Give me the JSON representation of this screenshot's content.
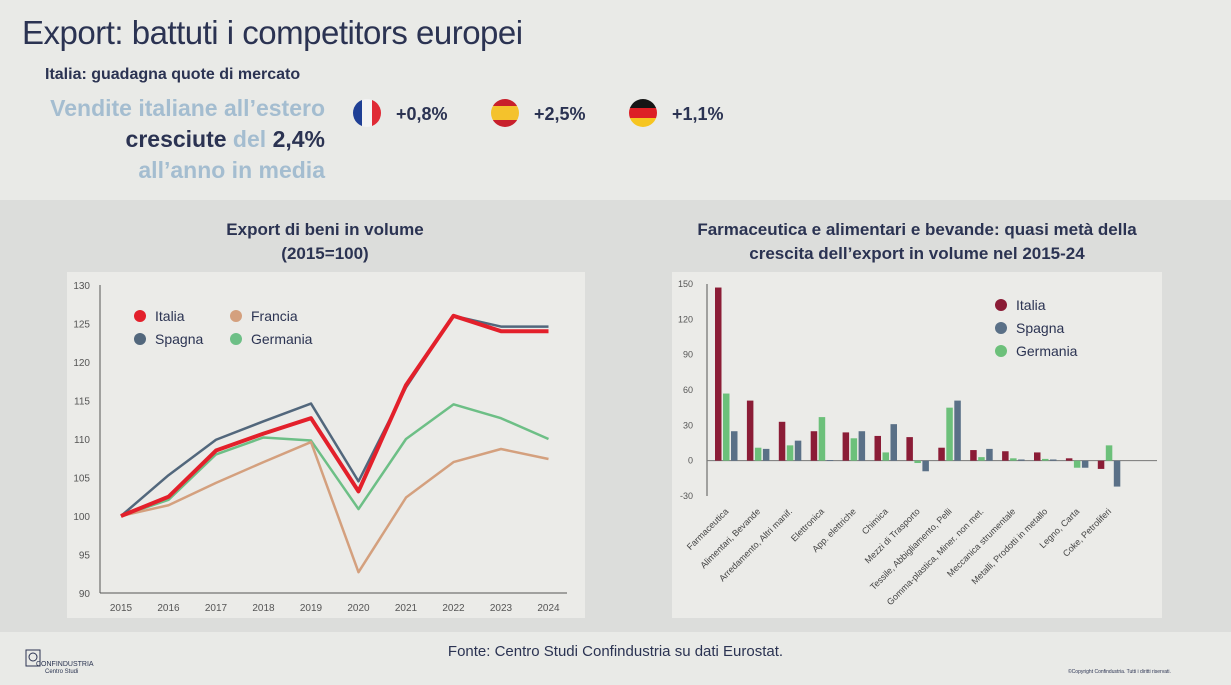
{
  "title": "Export: battuti i competitors europei",
  "subtitle": "Italia: guadagna quote di mercato",
  "headline": {
    "p1": "Vendite italiane all’estero ",
    "p2": "cresciute",
    "p3": " del ",
    "p4": "2,4%",
    "p5": " all’anno in media"
  },
  "flags": [
    {
      "country": "Francia",
      "icon": "france-flag-icon",
      "value": "+0,8%"
    },
    {
      "country": "Spagna",
      "icon": "spain-flag-icon",
      "value": "+2,5%"
    },
    {
      "country": "Germania",
      "icon": "germany-flag-icon",
      "value": "+1,1%"
    }
  ],
  "footer": {
    "source": "Fonte: Centro Studi Confindustria su dati Eurostat.",
    "logo_line1": "CONFINDUSTRIA",
    "logo_line2": "Centro Studi",
    "copyright": "©Copyright Confindustria. Tutti i diritti riservati."
  },
  "chart_data": [
    {
      "type": "line",
      "title": "Export di beni in volume",
      "subtitle": "(2015=100)",
      "xlabel": "",
      "ylabel": "",
      "x": [
        "2015",
        "2016",
        "2017",
        "2018",
        "2019",
        "2020",
        "2021",
        "2022",
        "2023",
        "2024"
      ],
      "ylim": [
        90,
        130
      ],
      "yticks": [
        90,
        95,
        100,
        105,
        110,
        115,
        120,
        125,
        130
      ],
      "legend": "top-left",
      "series": [
        {
          "name": "Germania",
          "color": "#6dbf86",
          "values": [
            100,
            102.1,
            108,
            110.2,
            109.8,
            100.9,
            110,
            114.5,
            112.7,
            110
          ]
        },
        {
          "name": "Francia",
          "color": "#d4a07e",
          "values": [
            100,
            101.4,
            104.3,
            107,
            109.6,
            92.7,
            102.4,
            107,
            108.7,
            107.4
          ]
        },
        {
          "name": "Spagna",
          "color": "#52677c",
          "values": [
            100,
            105.3,
            109.9,
            112.3,
            114.6,
            104.5,
            116.7,
            126,
            124.6,
            124.6
          ]
        },
        {
          "name": "Italia",
          "color": "#e3202b",
          "values": [
            100,
            102.5,
            108.5,
            110.7,
            112.7,
            103.2,
            117,
            126,
            124,
            124
          ]
        }
      ],
      "legend_order": [
        "Italia",
        "Francia",
        "Spagna",
        "Germania"
      ]
    },
    {
      "type": "bar",
      "title": "Farmaceutica e alimentari e bevande: quasi metà della",
      "title2": "crescita dell’export  in volume nel 2015-24",
      "categories": [
        "Farmaceutica",
        "Alimentari, Bevande",
        "Arredamento, Altri manif.",
        "Elettronica",
        "App. elettriche",
        "Chimica",
        "Mezzi di Trasporto",
        "Tessile, Abbigliamento, Pelli",
        "Gomma-plastica, Miner. non met.",
        "Meccanica strumentale",
        "Metalli, Prodotti in metallo",
        "Legno, Carta",
        "Coke, Petroliferi"
      ],
      "ylim": [
        -30,
        150
      ],
      "yticks": [
        -30,
        0,
        30,
        60,
        90,
        120,
        150
      ],
      "legend": "top-right",
      "series": [
        {
          "name": "Italia",
          "color": "#8b1c36",
          "values": [
            147,
            51,
            33,
            25,
            24,
            21,
            20,
            11,
            9,
            8,
            7,
            2,
            -7
          ]
        },
        {
          "name": "Spagna",
          "color": "#5a7087",
          "values": [
            25,
            10,
            17,
            0.5,
            25,
            31,
            -9,
            51,
            10,
            1,
            1,
            -6,
            -22
          ]
        },
        {
          "name": "Germania",
          "color": "#6cc07a",
          "values": [
            57,
            11,
            13,
            37,
            19,
            7,
            -2,
            45,
            3,
            2,
            1.5,
            -6,
            13
          ]
        }
      ],
      "bar_order": [
        "Italia",
        "Germania",
        "Spagna"
      ]
    }
  ]
}
